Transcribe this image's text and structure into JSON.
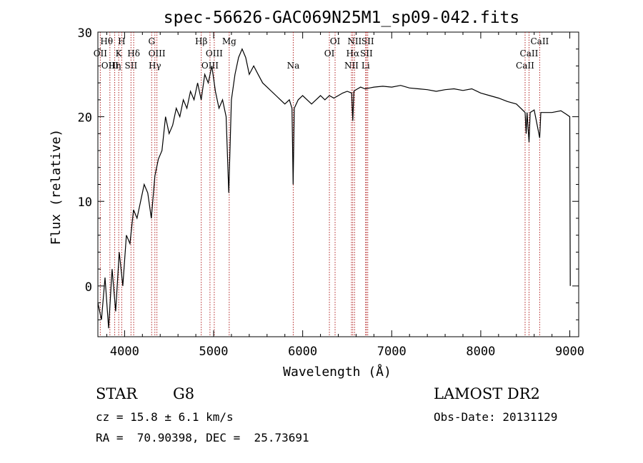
{
  "chart_data": {
    "type": "line",
    "title": "spec-56626-GAC069N25M1_sp09-042.fits",
    "xlabel": "Wavelength (Å)",
    "ylabel": "Flux (relative)",
    "xlim": [
      3700,
      9100
    ],
    "ylim": [
      -6,
      30
    ],
    "x_ticks": [
      4000,
      5000,
      6000,
      7000,
      8000,
      9000
    ],
    "y_ticks": [
      0,
      10,
      20,
      30
    ],
    "x_tick_labels": [
      "4000",
      "5000",
      "6000",
      "7000",
      "8000",
      "9000"
    ],
    "y_tick_labels": [
      "0",
      "10",
      "20",
      "30"
    ],
    "line_color": "#000000",
    "marker_color": "#b22222",
    "series": [
      {
        "values": [
          [
            3700,
            -2
          ],
          [
            3740,
            -4
          ],
          [
            3780,
            1
          ],
          [
            3820,
            -5
          ],
          [
            3860,
            2
          ],
          [
            3900,
            -3
          ],
          [
            3940,
            4
          ],
          [
            3980,
            0
          ],
          [
            4020,
            6
          ],
          [
            4060,
            5
          ],
          [
            4100,
            9
          ],
          [
            4140,
            8
          ],
          [
            4180,
            10
          ],
          [
            4220,
            12
          ],
          [
            4260,
            11
          ],
          [
            4300,
            8
          ],
          [
            4340,
            13
          ],
          [
            4380,
            15
          ],
          [
            4420,
            16
          ],
          [
            4460,
            20
          ],
          [
            4500,
            18
          ],
          [
            4540,
            19
          ],
          [
            4580,
            21
          ],
          [
            4620,
            20
          ],
          [
            4660,
            22
          ],
          [
            4700,
            21
          ],
          [
            4740,
            23
          ],
          [
            4780,
            22
          ],
          [
            4820,
            24
          ],
          [
            4860,
            22
          ],
          [
            4900,
            25
          ],
          [
            4940,
            24
          ],
          [
            4980,
            26
          ],
          [
            5020,
            23
          ],
          [
            5060,
            21
          ],
          [
            5100,
            22
          ],
          [
            5140,
            20
          ],
          [
            5170,
            11
          ],
          [
            5200,
            22
          ],
          [
            5240,
            25
          ],
          [
            5280,
            27
          ],
          [
            5320,
            28
          ],
          [
            5360,
            27
          ],
          [
            5400,
            25
          ],
          [
            5450,
            26
          ],
          [
            5500,
            25
          ],
          [
            5550,
            24
          ],
          [
            5600,
            23.5
          ],
          [
            5650,
            23
          ],
          [
            5700,
            22.5
          ],
          [
            5750,
            22
          ],
          [
            5800,
            21.5
          ],
          [
            5850,
            22
          ],
          [
            5880,
            21
          ],
          [
            5893,
            12
          ],
          [
            5906,
            21
          ],
          [
            5950,
            22
          ],
          [
            6000,
            22.5
          ],
          [
            6050,
            22
          ],
          [
            6100,
            21.5
          ],
          [
            6150,
            22
          ],
          [
            6200,
            22.5
          ],
          [
            6250,
            22
          ],
          [
            6300,
            22.5
          ],
          [
            6350,
            22.2
          ],
          [
            6400,
            22.5
          ],
          [
            6450,
            22.8
          ],
          [
            6500,
            23
          ],
          [
            6550,
            22.8
          ],
          [
            6563,
            19.5
          ],
          [
            6575,
            23
          ],
          [
            6600,
            23.2
          ],
          [
            6650,
            23.5
          ],
          [
            6700,
            23.3
          ],
          [
            6750,
            23.4
          ],
          [
            6800,
            23.5
          ],
          [
            6900,
            23.6
          ],
          [
            7000,
            23.5
          ],
          [
            7100,
            23.7
          ],
          [
            7200,
            23.4
          ],
          [
            7300,
            23.3
          ],
          [
            7400,
            23.2
          ],
          [
            7500,
            23
          ],
          [
            7600,
            23.2
          ],
          [
            7700,
            23.3
          ],
          [
            7800,
            23.1
          ],
          [
            7900,
            23.3
          ],
          [
            8000,
            22.8
          ],
          [
            8100,
            22.5
          ],
          [
            8200,
            22.2
          ],
          [
            8300,
            21.8
          ],
          [
            8400,
            21.5
          ],
          [
            8498,
            20.5
          ],
          [
            8510,
            18
          ],
          [
            8520,
            20.5
          ],
          [
            8542,
            17
          ],
          [
            8555,
            20.5
          ],
          [
            8600,
            20.8
          ],
          [
            8662,
            17.5
          ],
          [
            8675,
            20.5
          ],
          [
            8700,
            20.5
          ],
          [
            8800,
            20.5
          ],
          [
            8900,
            20.7
          ],
          [
            8960,
            20.3
          ],
          [
            9000,
            20
          ],
          [
            9005,
            0
          ]
        ]
      }
    ],
    "lines": [
      {
        "x": 3727,
        "labels": [
          "OII"
        ]
      },
      {
        "x": 3835,
        "labels": [
          "OIII"
        ]
      },
      {
        "x": 3889,
        "labels": [
          "Hη"
        ]
      },
      {
        "x": 3934,
        "labels": [
          "K"
        ]
      },
      {
        "x": 3968,
        "labels": [
          "H"
        ]
      },
      {
        "x": 4072,
        "labels": [
          "SII"
        ]
      },
      {
        "x": 4102,
        "labels": [
          "Hδ"
        ]
      },
      {
        "x": 4304,
        "labels": [
          "G"
        ]
      },
      {
        "x": 4340,
        "labels": [
          "Hγ"
        ]
      },
      {
        "x": 4363,
        "labels": [
          "OIII"
        ]
      },
      {
        "x": 4861,
        "labels": [
          "Hβ"
        ]
      },
      {
        "x": 4959,
        "labels": [
          "OIII"
        ]
      },
      {
        "x": 5007,
        "labels": [
          "OIII"
        ]
      },
      {
        "x": 5175,
        "labels": [
          "Mg"
        ]
      },
      {
        "x": 5894,
        "labels": [
          "Na"
        ]
      },
      {
        "x": 6300,
        "labels": [
          "OI"
        ]
      },
      {
        "x": 6364,
        "labels": [
          "OI"
        ]
      },
      {
        "x": 6548,
        "labels": [
          "NII"
        ]
      },
      {
        "x": 6563,
        "labels": [
          "Hα"
        ]
      },
      {
        "x": 6583,
        "labels": [
          "NII"
        ]
      },
      {
        "x": 6707,
        "labels": [
          "Li"
        ]
      },
      {
        "x": 6716,
        "labels": [
          "SII"
        ]
      },
      {
        "x": 6731,
        "labels": [
          "SII"
        ]
      },
      {
        "x": 8498,
        "labels": [
          "CaII"
        ]
      },
      {
        "x": 8542,
        "labels": [
          "CaII"
        ]
      },
      {
        "x": 8662,
        "labels": [
          "CaII"
        ]
      }
    ]
  },
  "info": {
    "class": "STAR",
    "subclass": "G8",
    "survey": "LAMOST DR2",
    "redshift": "cz = 15.8 ± 6.1 km/s",
    "obs_date": "Obs-Date: 20131129",
    "coords": "RA =  70.90398, DEC =  25.73691"
  },
  "line_labels": {
    "row1": [
      {
        "text": "Hθ",
        "x": 3798
      },
      {
        "text": "H",
        "x": 3968
      },
      {
        "text": "G",
        "x": 4304
      },
      {
        "text": "Hβ",
        "x": 4861
      },
      {
        "text": "Mg",
        "x": 5175
      },
      {
        "text": "OI",
        "x": 6364
      },
      {
        "text": "NII",
        "x": 6583
      },
      {
        "text": "SII",
        "x": 6731
      },
      {
        "text": "CaII",
        "x": 8662
      }
    ],
    "row2": [
      {
        "text": "OII",
        "x": 3727
      },
      {
        "text": "K",
        "x": 3934
      },
      {
        "text": "Hδ",
        "x": 4102
      },
      {
        "text": "OIII",
        "x": 4363
      },
      {
        "text": "OIII",
        "x": 5007
      },
      {
        "text": "OI",
        "x": 6300
      },
      {
        "text": "Hα",
        "x": 6563
      },
      {
        "text": "SII",
        "x": 6716
      },
      {
        "text": "CaII",
        "x": 8542
      }
    ],
    "row3": [
      {
        "text": "OIII",
        "x": 3835
      },
      {
        "text": "Hη",
        "x": 3889
      },
      {
        "text": "SII",
        "x": 4072
      },
      {
        "text": "Hγ",
        "x": 4340
      },
      {
        "text": "OIII",
        "x": 4959
      },
      {
        "text": "Na",
        "x": 5894
      },
      {
        "text": "NII",
        "x": 6548
      },
      {
        "text": "Li",
        "x": 6707
      },
      {
        "text": "CaII",
        "x": 8498
      }
    ]
  }
}
